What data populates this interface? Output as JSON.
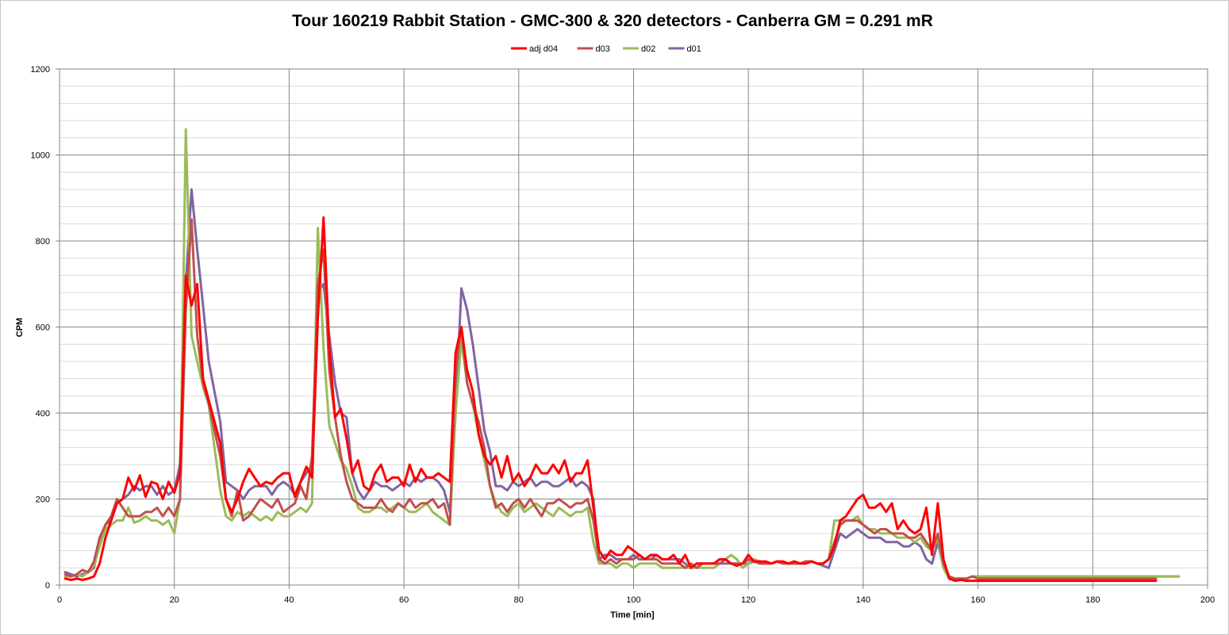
{
  "chart_data": {
    "type": "line",
    "title": "Tour 160219 Rabbit Station - GMC-300 & 320 detectors - Canberra GM = 0.291 mR",
    "xlabel": "Time [min]",
    "ylabel": "CPM",
    "xlim": [
      0,
      200
    ],
    "ylim": [
      0,
      1200
    ],
    "x_ticks": [
      0,
      20,
      40,
      60,
      80,
      100,
      120,
      140,
      160,
      180,
      200
    ],
    "y_ticks": [
      0,
      200,
      400,
      600,
      800,
      1000,
      1200
    ],
    "grid": true,
    "legend_position": "top-center",
    "series": [
      {
        "name": "adj d04",
        "color": "#ff0000",
        "values": [
          15,
          12,
          15,
          12,
          15,
          20,
          50,
          110,
          150,
          190,
          200,
          250,
          220,
          255,
          205,
          240,
          235,
          200,
          240,
          215,
          260,
          720,
          650,
          700,
          480,
          430,
          380,
          330,
          200,
          170,
          200,
          240,
          270,
          250,
          230,
          240,
          235,
          250,
          260,
          260,
          205,
          240,
          275,
          250,
          620,
          855,
          550,
          390,
          410,
          340,
          260,
          290,
          230,
          220,
          260,
          280,
          240,
          250,
          250,
          230,
          280,
          240,
          270,
          250,
          250,
          260,
          250,
          240,
          540,
          600,
          500,
          450,
          350,
          300,
          280,
          300,
          250,
          300,
          240,
          260,
          230,
          250,
          280,
          260,
          260,
          280,
          260,
          290,
          240,
          260,
          260,
          290,
          180,
          80,
          60,
          80,
          70,
          70,
          90,
          80,
          70,
          60,
          70,
          70,
          60,
          60,
          70,
          50,
          70,
          40,
          50,
          50,
          50,
          50,
          60,
          60,
          50,
          45,
          50,
          70,
          55,
          55,
          55,
          50,
          55,
          55,
          50,
          55,
          50,
          50,
          55,
          50,
          50,
          60,
          90,
          150,
          160,
          180,
          200,
          210,
          180,
          180,
          190,
          170,
          190,
          130,
          150,
          130,
          120,
          130,
          180,
          70,
          190,
          60,
          15,
          10,
          12,
          10,
          10,
          10,
          10,
          10,
          10,
          10,
          10,
          10,
          10,
          10,
          10,
          10,
          10,
          10,
          10,
          10,
          10,
          10,
          10,
          10,
          10,
          10,
          10,
          10,
          10,
          10,
          10,
          10,
          10,
          10,
          10,
          10,
          10
        ]
      },
      {
        "name": "d03",
        "color": "#c0504d",
        "values": [
          25,
          20,
          25,
          35,
          30,
          55,
          110,
          140,
          160,
          200,
          180,
          160,
          160,
          160,
          170,
          170,
          180,
          160,
          180,
          160,
          200,
          640,
          850,
          580,
          470,
          420,
          360,
          300,
          200,
          160,
          220,
          150,
          160,
          180,
          200,
          190,
          180,
          200,
          170,
          180,
          190,
          230,
          200,
          300,
          700,
          780,
          500,
          390,
          300,
          240,
          200,
          190,
          180,
          180,
          180,
          200,
          180,
          170,
          190,
          180,
          200,
          180,
          190,
          190,
          200,
          180,
          190,
          140,
          500,
          600,
          470,
          420,
          380,
          320,
          230,
          180,
          190,
          170,
          190,
          200,
          180,
          200,
          180,
          160,
          190,
          190,
          200,
          190,
          180,
          190,
          190,
          200,
          150,
          60,
          50,
          60,
          50,
          60,
          60,
          60,
          70,
          60,
          60,
          60,
          50,
          50,
          50,
          50,
          40,
          50,
          40,
          50,
          50,
          50,
          50,
          60,
          50,
          50,
          50,
          60,
          55,
          50,
          50,
          50,
          55,
          50,
          50,
          50,
          50,
          55,
          55,
          50,
          50,
          60,
          100,
          140,
          150,
          150,
          150,
          140,
          130,
          120,
          130,
          130,
          120,
          120,
          120,
          110,
          110,
          120,
          100,
          80,
          120,
          50,
          20,
          15,
          15,
          15,
          20,
          15,
          15,
          15,
          15,
          15,
          15,
          15,
          15,
          15,
          15,
          15,
          15,
          15,
          15,
          15,
          15,
          15,
          15,
          15,
          15,
          15,
          15,
          15,
          15,
          15,
          15,
          15,
          15,
          15,
          15,
          15,
          15
        ]
      },
      {
        "name": "d02",
        "color": "#9bbb59",
        "values": [
          20,
          20,
          25,
          20,
          30,
          45,
          90,
          130,
          140,
          150,
          150,
          180,
          145,
          150,
          160,
          150,
          150,
          140,
          150,
          120,
          200,
          1060,
          580,
          520,
          460,
          420,
          320,
          220,
          160,
          150,
          170,
          160,
          170,
          160,
          150,
          160,
          150,
          170,
          160,
          160,
          170,
          180,
          170,
          190,
          830,
          550,
          370,
          330,
          290,
          270,
          230,
          180,
          170,
          170,
          180,
          180,
          170,
          180,
          190,
          180,
          170,
          170,
          180,
          190,
          170,
          160,
          150,
          140,
          400,
          570,
          470,
          420,
          350,
          290,
          230,
          190,
          170,
          160,
          180,
          190,
          170,
          180,
          190,
          180,
          170,
          160,
          180,
          170,
          160,
          170,
          170,
          180,
          100,
          50,
          50,
          50,
          40,
          50,
          50,
          40,
          50,
          50,
          50,
          50,
          40,
          40,
          40,
          40,
          40,
          40,
          40,
          40,
          40,
          40,
          50,
          60,
          70,
          60,
          40,
          50,
          60,
          55,
          50,
          50,
          55,
          50,
          50,
          55,
          50,
          50,
          55,
          50,
          50,
          60,
          150,
          150,
          150,
          150,
          160,
          140,
          130,
          130,
          120,
          120,
          120,
          110,
          110,
          110,
          100,
          110,
          90,
          80,
          110,
          40,
          15,
          15,
          15,
          15,
          20,
          20,
          20,
          20,
          20,
          20,
          20,
          20,
          20,
          20,
          20,
          20,
          20,
          20,
          20,
          20,
          20,
          20,
          20,
          20,
          20,
          20,
          20,
          20,
          20,
          20,
          20,
          20,
          20,
          20,
          20,
          20,
          20,
          20,
          20,
          20,
          20
        ]
      },
      {
        "name": "d01",
        "color": "#8064a2",
        "values": [
          30,
          25,
          20,
          25,
          30,
          40,
          100,
          140,
          150,
          190,
          200,
          210,
          230,
          220,
          230,
          230,
          210,
          230,
          210,
          220,
          280,
          700,
          920,
          780,
          650,
          520,
          450,
          380,
          240,
          230,
          220,
          200,
          220,
          230,
          230,
          230,
          210,
          230,
          240,
          230,
          210,
          240,
          260,
          280,
          680,
          700,
          580,
          470,
          400,
          390,
          260,
          220,
          200,
          220,
          240,
          230,
          230,
          220,
          230,
          240,
          230,
          250,
          240,
          250,
          250,
          240,
          220,
          170,
          400,
          690,
          640,
          560,
          460,
          360,
          310,
          230,
          230,
          220,
          240,
          230,
          240,
          250,
          230,
          240,
          240,
          230,
          230,
          240,
          250,
          230,
          240,
          230,
          200,
          60,
          70,
          70,
          60,
          60,
          60,
          70,
          60,
          60,
          60,
          70,
          60,
          60,
          60,
          60,
          50,
          40,
          50,
          50,
          50,
          50,
          50,
          50,
          50,
          50,
          50,
          50,
          55,
          50,
          50,
          50,
          55,
          50,
          50,
          50,
          50,
          55,
          55,
          50,
          45,
          40,
          80,
          120,
          110,
          120,
          130,
          120,
          110,
          110,
          110,
          100,
          100,
          100,
          90,
          90,
          100,
          90,
          60,
          50,
          100,
          40,
          15,
          15,
          15,
          15,
          20,
          20,
          20,
          20,
          20,
          20,
          20,
          20,
          20,
          20,
          20,
          20,
          20,
          20,
          20,
          20,
          20,
          20,
          20,
          20,
          20,
          20,
          20,
          20,
          20,
          20,
          20,
          20,
          20,
          20,
          20,
          20,
          20,
          20,
          20,
          20,
          20
        ]
      }
    ]
  }
}
